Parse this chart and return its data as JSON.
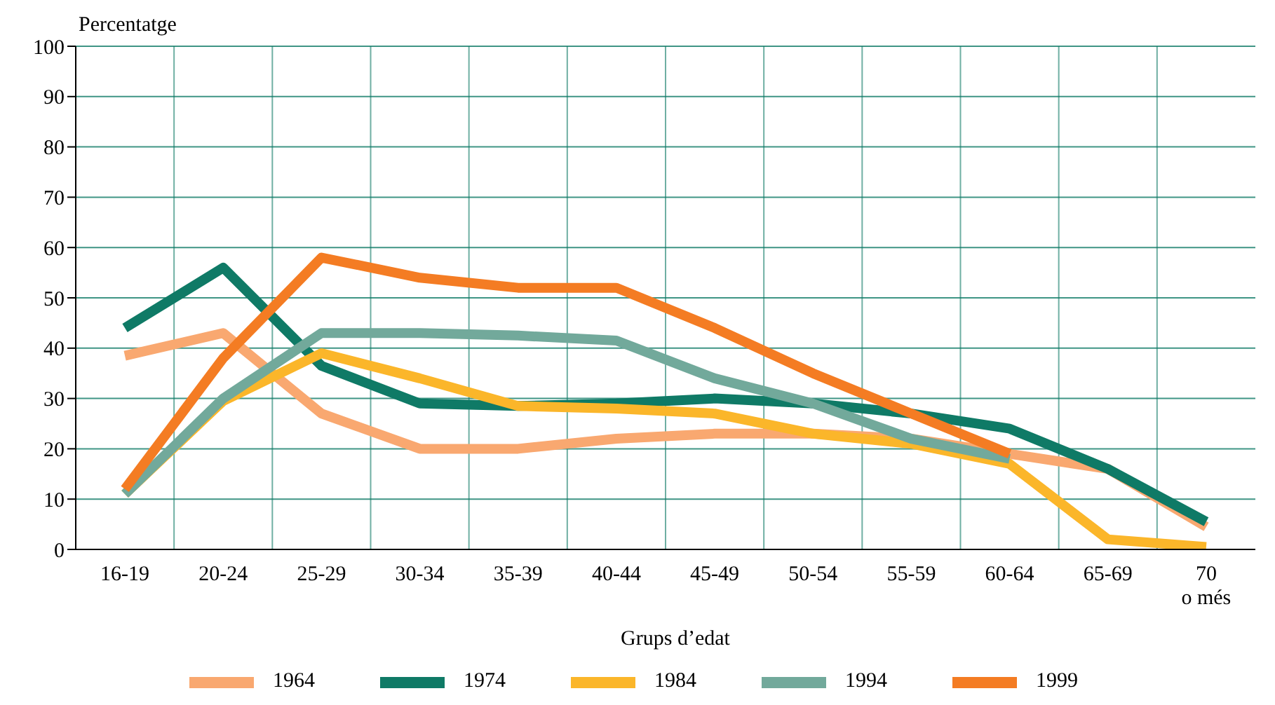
{
  "chart_data": {
    "type": "line",
    "ylabel": "Percentatge",
    "xlabel": "Grups d’edat",
    "categories": [
      "16-19",
      "20-24",
      "25-29",
      "30-34",
      "35-39",
      "40-44",
      "45-49",
      "50-54",
      "55-59",
      "60-64",
      "65-69",
      "70 o més"
    ],
    "series": [
      {
        "name": "1964",
        "color": "#f9a870",
        "values": [
          38.5,
          43,
          27,
          20,
          20,
          22,
          23,
          23,
          22,
          19,
          16,
          4.5
        ]
      },
      {
        "name": "1974",
        "color": "#0f7a66",
        "values": [
          44,
          56,
          36.5,
          29,
          28.5,
          29,
          30,
          29,
          27,
          24,
          16,
          5.5
        ]
      },
      {
        "name": "1984",
        "color": "#fbb62a",
        "values": [
          11,
          29.5,
          39,
          34,
          28.5,
          28,
          27,
          23,
          21,
          17,
          2,
          0.5
        ]
      },
      {
        "name": "1994",
        "color": "#72a99b",
        "values": [
          11,
          30,
          43,
          43,
          42.5,
          41.5,
          34,
          29,
          22,
          18,
          null,
          null
        ]
      },
      {
        "name": "1999",
        "color": "#f47c23",
        "values": [
          12,
          38,
          58,
          54,
          52,
          52,
          44,
          35,
          27,
          19,
          null,
          null
        ]
      }
    ],
    "ylim": [
      0,
      100
    ],
    "yticks": [
      0,
      10,
      20,
      30,
      40,
      50,
      60,
      70,
      80,
      90,
      100
    ],
    "grid": true,
    "legend": "bottom",
    "marker": "none",
    "line_style": "solid"
  }
}
